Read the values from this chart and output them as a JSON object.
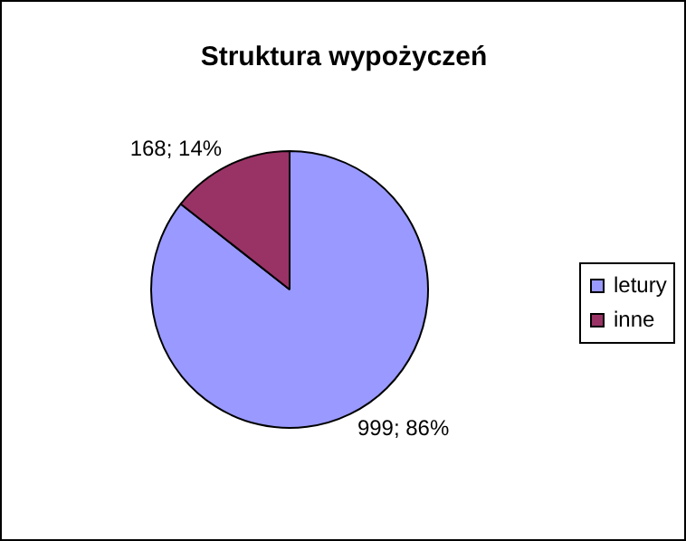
{
  "chart_data": {
    "type": "pie",
    "title": "Struktura wypożyczeń",
    "categories": [
      "letury",
      "inne"
    ],
    "values": [
      999,
      168
    ],
    "colors": [
      "#9999ff",
      "#993366"
    ],
    "value_labels": [
      "999; 86%",
      "168; 14%"
    ],
    "legend": "right"
  }
}
